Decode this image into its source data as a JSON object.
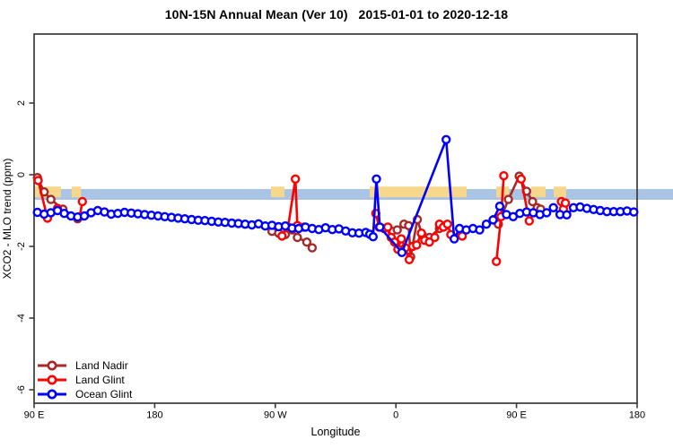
{
  "title": "10N-15N Annual Mean (Ver 10)   2015-01-01 to 2020-12-18",
  "chart_data": {
    "type": "line",
    "title": "10N-15N Annual Mean (Ver 10)   2015-01-01 to 2020-12-18",
    "xlabel": "Longitude",
    "ylabel": "XCO2 - MLO trend (ppm)",
    "x_axis_note": "axis spans longitude 90E eastward through 180, 90W, 0, back to 90E and 180 (450 degrees total)",
    "xlim_deg": [
      90,
      540
    ],
    "ylim": [
      -6.38,
      3.93
    ],
    "x_ticks": [
      {
        "t": 90,
        "label": "90 E"
      },
      {
        "t": 180,
        "label": "180"
      },
      {
        "t": 270,
        "label": "90 W"
      },
      {
        "t": 360,
        "label": "0"
      },
      {
        "t": 450,
        "label": "90 E"
      },
      {
        "t": 540,
        "label": "180"
      }
    ],
    "y_ticks": [
      {
        "v": 2,
        "label": "2"
      },
      {
        "v": 0,
        "label": "0"
      },
      {
        "v": -2,
        "label": "-2"
      },
      {
        "v": -4,
        "label": "-4"
      },
      {
        "v": -6,
        "label": "-6"
      }
    ],
    "bands": {
      "ocean_band": {
        "color": "#A9C4E4",
        "y_from": -0.4,
        "y_to": -0.7,
        "x_from_deg": 90,
        "x_to_deg": 567
      },
      "land_band_color": "#F6D78B",
      "land_band_y_from": -0.33,
      "land_band_y_to": -0.63,
      "land_segments_deg": [
        [
          90,
          110
        ],
        [
          118,
          125
        ],
        [
          266.8,
          276.8
        ],
        [
          340.4,
          412.8
        ],
        [
          434.9,
          444.3
        ],
        [
          461,
          471.7
        ],
        [
          477.7,
          487.1
        ]
      ]
    },
    "marker": "open-circle",
    "legend_position": "bottom-left",
    "series": [
      {
        "name": "Land Nadir",
        "color": "#A52A2A",
        "segments": [
          [
            [
              92.5,
              -0.08
            ],
            [
              97.5,
              -0.48
            ],
            [
              102.5,
              -0.69
            ],
            [
              111.5,
              -0.96
            ],
            [
              122.5,
              -1.23
            ]
          ],
          [
            [
              267.5,
              -1.58
            ],
            [
              272.5,
              -1.63
            ],
            [
              277.5,
              -1.67
            ],
            [
              282.5,
              -1.54
            ],
            [
              286.5,
              -1.75
            ],
            [
              293.5,
              -1.88
            ],
            [
              297.5,
              -2.04
            ]
          ],
          [
            [
              357,
              -1.58
            ],
            [
              361,
              -1.54
            ],
            [
              366,
              -1.38
            ],
            [
              369.5,
              -1.42
            ],
            [
              371,
              -2.29
            ],
            [
              376,
              -1.25
            ],
            [
              379.5,
              -1.67
            ],
            [
              385,
              -1.75
            ],
            [
              392.5,
              -1.5
            ],
            [
              397,
              -1.42
            ]
          ],
          [
            [
              433,
              -1.25
            ],
            [
              436.5,
              -1.38
            ],
            [
              444,
              -0.69
            ],
            [
              452,
              -0.04
            ],
            [
              457.5,
              -0.46
            ],
            [
              462,
              -0.75
            ],
            [
              465.5,
              -0.92
            ],
            [
              468,
              -0.96
            ]
          ]
        ]
      },
      {
        "name": "Land Glint",
        "color": "#FF0000",
        "segments": [
          [
            [
              93,
              -0.16
            ],
            [
              100,
              -1.21
            ],
            [
              107.5,
              -0.94
            ]
          ],
          [
            [
              124,
              -1.17
            ],
            [
              126,
              -0.75
            ]
          ],
          [
            [
              275,
              -1.71
            ],
            [
              279.5,
              -1.46
            ],
            [
              285,
              -0.12
            ],
            [
              286.5,
              -1.42
            ],
            [
              291.5,
              -1.46
            ]
          ],
          [
            [
              345,
              -1.08
            ],
            [
              347.5,
              -1.46
            ],
            [
              351,
              -1.5
            ],
            [
              354,
              -1.46
            ],
            [
              356.5,
              -1.75
            ],
            [
              359,
              -1.88
            ],
            [
              361.5,
              -2.08
            ],
            [
              364,
              -1.79
            ],
            [
              367,
              -2.04
            ],
            [
              370,
              -2.37
            ],
            [
              372.5,
              -2.0
            ],
            [
              375.5,
              -1.96
            ],
            [
              379,
              -1.63
            ],
            [
              381.5,
              -1.83
            ],
            [
              385,
              -1.88
            ],
            [
              389,
              -1.75
            ],
            [
              392.5,
              -1.38
            ],
            [
              395.5,
              -1.46
            ],
            [
              398.5,
              -1.38
            ],
            [
              401,
              -1.67
            ],
            [
              409.5,
              -1.71
            ]
          ],
          [
            [
              435,
              -2.42
            ],
            [
              438.5,
              -1.17
            ],
            [
              440.5,
              -0.03
            ]
          ],
          [
            [
              453.5,
              -0.12
            ],
            [
              459.5,
              -1.29
            ]
          ],
          [
            [
              483.5,
              -0.75
            ],
            [
              485,
              -0.96
            ],
            [
              486.5,
              -0.79
            ]
          ]
        ]
      },
      {
        "name": "Ocean Glint",
        "color": "#0000FF",
        "segments": [
          [
            [
              92.5,
              -1.05
            ],
            [
              97.5,
              -1.1
            ],
            [
              102.5,
              -1.06
            ],
            [
              107.5,
              -1.0
            ],
            [
              112.5,
              -1.08
            ],
            [
              117.5,
              -1.15
            ],
            [
              122.5,
              -1.18
            ],
            [
              127.5,
              -1.15
            ],
            [
              132.5,
              -1.06
            ],
            [
              137.5,
              -1.0
            ],
            [
              142.5,
              -1.04
            ],
            [
              147.5,
              -1.1
            ],
            [
              152.5,
              -1.08
            ],
            [
              157.5,
              -1.05
            ],
            [
              162.5,
              -1.07
            ],
            [
              167.5,
              -1.09
            ],
            [
              172.5,
              -1.11
            ],
            [
              177.5,
              -1.13
            ],
            [
              182.5,
              -1.15
            ],
            [
              187.5,
              -1.17
            ],
            [
              192.5,
              -1.19
            ],
            [
              197.5,
              -1.21
            ],
            [
              202.5,
              -1.23
            ],
            [
              207.5,
              -1.25
            ],
            [
              212.5,
              -1.27
            ],
            [
              217.5,
              -1.28
            ],
            [
              222.5,
              -1.3
            ],
            [
              227.5,
              -1.32
            ],
            [
              232.5,
              -1.33
            ],
            [
              237.5,
              -1.35
            ],
            [
              242.5,
              -1.36
            ],
            [
              247.5,
              -1.38
            ],
            [
              252.5,
              -1.4
            ],
            [
              257.5,
              -1.37
            ],
            [
              262.5,
              -1.43
            ],
            [
              267.5,
              -1.41
            ],
            [
              272.5,
              -1.45
            ],
            [
              277.5,
              -1.43
            ],
            [
              282.5,
              -1.49
            ],
            [
              287.5,
              -1.5
            ],
            [
              292.5,
              -1.46
            ],
            [
              297.5,
              -1.5
            ],
            [
              302.5,
              -1.53
            ],
            [
              307.5,
              -1.48
            ],
            [
              312.5,
              -1.53
            ],
            [
              317.5,
              -1.51
            ],
            [
              322.5,
              -1.57
            ],
            [
              327.5,
              -1.62
            ],
            [
              332.5,
              -1.63
            ],
            [
              337.5,
              -1.61
            ],
            [
              340.5,
              -1.66
            ],
            [
              343,
              -1.73
            ],
            [
              345.5,
              -0.12
            ],
            [
              348,
              -1.46
            ],
            [
              364.5,
              -2.17
            ],
            [
              397.5,
              0.98
            ],
            [
              403.5,
              -1.79
            ],
            [
              407.5,
              -1.5
            ],
            [
              412.5,
              -1.54
            ],
            [
              417.5,
              -1.5
            ],
            [
              422.5,
              -1.54
            ],
            [
              427.5,
              -1.38
            ],
            [
              432.5,
              -1.26
            ],
            [
              437.5,
              -0.88
            ],
            [
              442.5,
              -1.11
            ],
            [
              447.5,
              -1.17
            ],
            [
              452.5,
              -1.08
            ],
            [
              457.5,
              -1.04
            ],
            [
              462.5,
              -1.06
            ],
            [
              467.5,
              -1.11
            ],
            [
              472.5,
              -1.06
            ],
            [
              477.5,
              -0.92
            ],
            [
              482.5,
              -1.11
            ],
            [
              487.5,
              -1.12
            ],
            [
              492.5,
              -0.92
            ],
            [
              497.5,
              -0.9
            ],
            [
              502.5,
              -0.94
            ],
            [
              507.5,
              -0.97
            ],
            [
              512.5,
              -1.0
            ],
            [
              517.5,
              -1.03
            ],
            [
              522.5,
              -1.03
            ],
            [
              527.5,
              -1.03
            ],
            [
              532.5,
              -1.01
            ],
            [
              537.5,
              -1.04
            ]
          ]
        ]
      }
    ]
  }
}
